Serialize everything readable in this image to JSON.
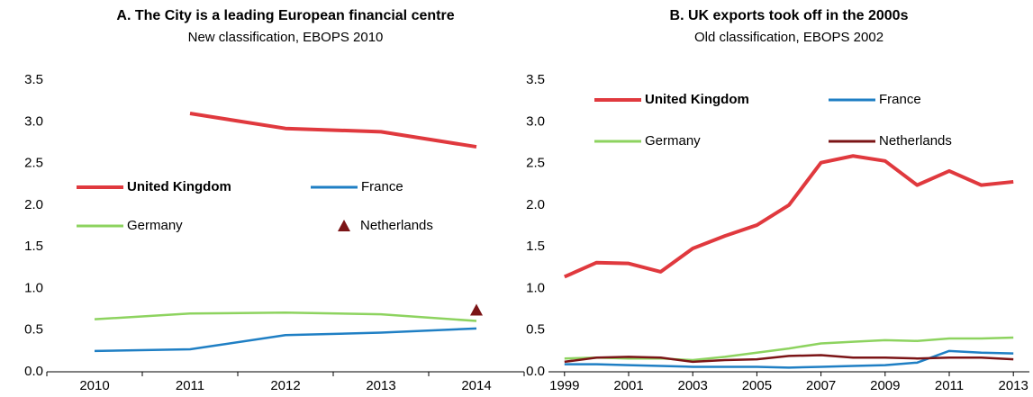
{
  "chart_data": [
    {
      "type": "line",
      "title": "A. The City is a leading European financial centre",
      "subtitle": "New classification, EBOPS 2010",
      "categories": [
        "2010",
        "2011",
        "2012",
        "2013",
        "2014"
      ],
      "ylim": [
        0,
        3.5
      ],
      "yticks": [
        {
          "value": 0,
          "label": "0.0"
        },
        0.5,
        {
          "value": 1,
          "label": "1.0"
        },
        1.5,
        {
          "value": 2,
          "label": "2.0"
        },
        2.5,
        {
          "value": 3,
          "label": "3.0"
        },
        3.5
      ],
      "series": [
        {
          "name": "United Kingdom",
          "color": "#e0393e",
          "values": [
            null,
            3.1,
            2.92,
            2.88,
            2.7
          ]
        },
        {
          "name": "France",
          "color": "#1f7fc4",
          "values": [
            0.25,
            0.27,
            0.44,
            0.47,
            0.52
          ]
        },
        {
          "name": "Germany",
          "color": "#8dd35f",
          "values": [
            0.63,
            0.7,
            0.71,
            0.69,
            0.61
          ]
        },
        {
          "name": "Netherlands",
          "color": "#7b1416",
          "marker": "triangle",
          "values": [
            null,
            null,
            null,
            null,
            0.74
          ]
        }
      ]
    },
    {
      "type": "line",
      "title": "B. UK exports took off in the 2000s",
      "subtitle": "Old classification, EBOPS 2002",
      "x": [
        1999,
        2000,
        2001,
        2002,
        2003,
        2004,
        2005,
        2006,
        2007,
        2008,
        2009,
        2010,
        2011,
        2012,
        2013
      ],
      "xlim": [
        1998.5,
        2013.5
      ],
      "xticks": [
        1999,
        2001,
        2003,
        2005,
        2007,
        2009,
        2011,
        2013
      ],
      "ylim": [
        0,
        3.5
      ],
      "yticks": [
        {
          "value": 0,
          "label": "0.0"
        },
        0.5,
        {
          "value": 1,
          "label": "1.0"
        },
        1.5,
        {
          "value": 2,
          "label": "2.0"
        },
        2.5,
        {
          "value": 3,
          "label": "3.0"
        },
        3.5
      ],
      "series": [
        {
          "name": "United Kingdom",
          "color": "#e0393e",
          "values": [
            1.14,
            1.31,
            1.3,
            1.2,
            1.48,
            1.63,
            1.76,
            2.0,
            2.51,
            2.59,
            2.53,
            2.24,
            2.41,
            2.24,
            2.28
          ]
        },
        {
          "name": "France",
          "color": "#1f7fc4",
          "values": [
            0.09,
            0.09,
            0.08,
            0.07,
            0.06,
            0.06,
            0.06,
            0.05,
            0.06,
            0.07,
            0.08,
            0.11,
            0.25,
            0.23,
            0.22
          ]
        },
        {
          "name": "Germany",
          "color": "#8dd35f",
          "values": [
            0.16,
            0.17,
            0.16,
            0.16,
            0.14,
            0.18,
            0.23,
            0.28,
            0.34,
            0.36,
            0.38,
            0.37,
            0.4,
            0.4,
            0.41
          ]
        },
        {
          "name": "Netherlands",
          "color": "#7b1416",
          "values": [
            0.12,
            0.17,
            0.18,
            0.17,
            0.12,
            0.14,
            0.15,
            0.19,
            0.2,
            0.17,
            0.17,
            0.16,
            0.17,
            0.17,
            0.15
          ]
        }
      ]
    }
  ]
}
